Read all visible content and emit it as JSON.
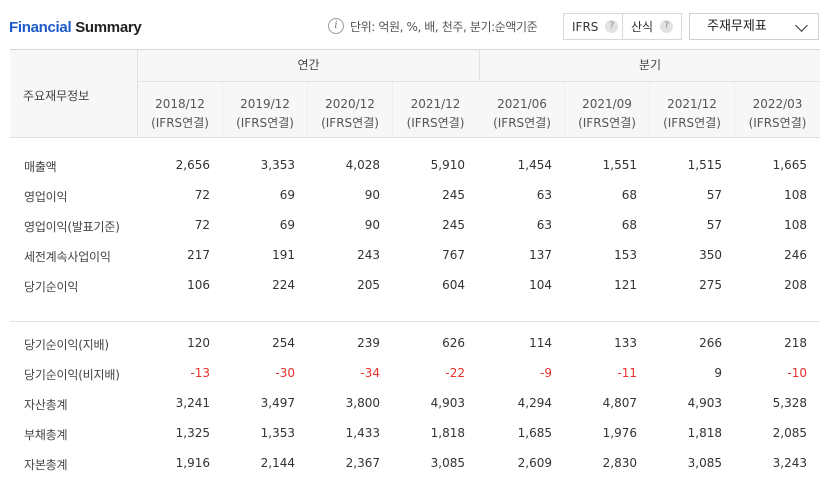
{
  "header": {
    "title_prefix": "Financial",
    "title_suffix": "Summary",
    "info_glyph": "i",
    "unit_text": "단위: 억원, %, 배, 천주, 분기:순액기준",
    "ifrs_label": "IFRS",
    "calc_label": "산식",
    "help_glyph": "?",
    "statement_select": "주재무제표"
  },
  "table": {
    "row_header": "주요재무정보",
    "group_annual": "연간",
    "group_quarter": "분기",
    "columns": [
      {
        "period": "2018/12",
        "basis": "(IFRS연결)"
      },
      {
        "period": "2019/12",
        "basis": "(IFRS연결)"
      },
      {
        "period": "2020/12",
        "basis": "(IFRS연결)"
      },
      {
        "period": "2021/12",
        "basis": "(IFRS연결)"
      },
      {
        "period": "2021/06",
        "basis": "(IFRS연결)"
      },
      {
        "period": "2021/09",
        "basis": "(IFRS연결)"
      },
      {
        "period": "2021/12",
        "basis": "(IFRS연결)"
      },
      {
        "period": "2022/03",
        "basis": "(IFRS연결)"
      }
    ],
    "rows": [
      {
        "label": "매출액",
        "values": [
          "2,656",
          "3,353",
          "4,028",
          "5,910",
          "1,454",
          "1,551",
          "1,515",
          "1,665"
        ]
      },
      {
        "label": "영업이익",
        "values": [
          "72",
          "69",
          "90",
          "245",
          "63",
          "68",
          "57",
          "108"
        ]
      },
      {
        "label": "영업이익(발표기준)",
        "values": [
          "72",
          "69",
          "90",
          "245",
          "63",
          "68",
          "57",
          "108"
        ]
      },
      {
        "label": "세전계속사업이익",
        "values": [
          "217",
          "191",
          "243",
          "767",
          "137",
          "153",
          "350",
          "246"
        ]
      },
      {
        "label": "당기순이익",
        "values": [
          "106",
          "224",
          "205",
          "604",
          "104",
          "121",
          "275",
          "208"
        ]
      },
      {
        "label": "당기순이익(지배)",
        "values": [
          "120",
          "254",
          "239",
          "626",
          "114",
          "133",
          "266",
          "218"
        ]
      },
      {
        "label": "당기순이익(비지배)",
        "values": [
          "-13",
          "-30",
          "-34",
          "-22",
          "-9",
          "-11",
          "9",
          "-10"
        ]
      },
      {
        "label": "자산총계",
        "values": [
          "3,241",
          "3,497",
          "3,800",
          "4,903",
          "4,294",
          "4,807",
          "4,903",
          "5,328"
        ]
      },
      {
        "label": "부채총계",
        "values": [
          "1,325",
          "1,353",
          "1,433",
          "1,818",
          "1,685",
          "1,976",
          "1,818",
          "2,085"
        ]
      },
      {
        "label": "자본총계",
        "values": [
          "1,916",
          "2,144",
          "2,367",
          "3,085",
          "2,609",
          "2,830",
          "3,085",
          "3,243"
        ]
      }
    ],
    "negative_color": "#e6312c"
  }
}
